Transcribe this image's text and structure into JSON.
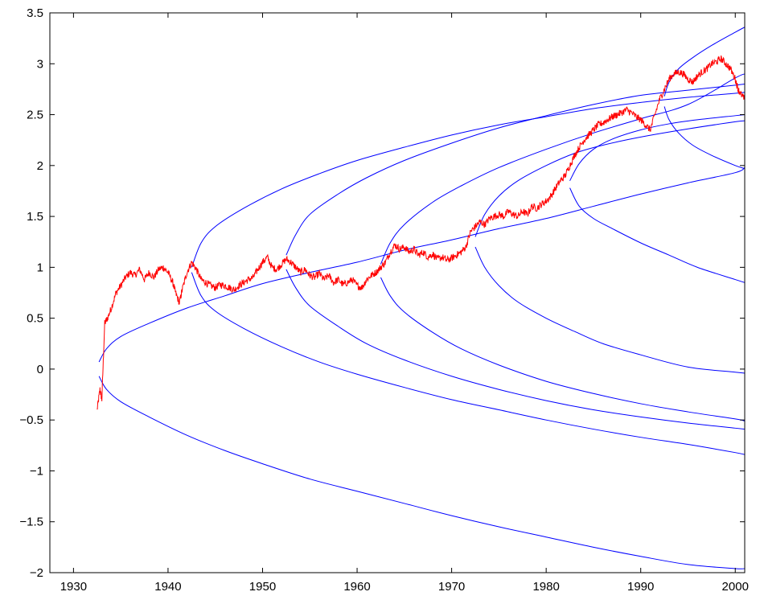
{
  "chart_data": {
    "type": "line",
    "title": "",
    "xlabel": "",
    "ylabel": "",
    "xlim": [
      1927.5,
      2001
    ],
    "ylim": [
      -2,
      3.5
    ],
    "grid": false,
    "x_ticks": [
      1930,
      1940,
      1950,
      1960,
      1970,
      1980,
      1990,
      2000
    ],
    "x_tick_labels": [
      "1930",
      "1940",
      "1950",
      "1960",
      "1970",
      "1980",
      "1990",
      "2000"
    ],
    "y_ticks": [
      -2,
      -1.5,
      -1,
      -0.5,
      0,
      0.5,
      1,
      1.5,
      2,
      2.5,
      3,
      3.5
    ],
    "y_tick_labels": [
      "−2",
      "−1.5",
      "−1",
      "−0.5",
      "0",
      "0.5",
      "1",
      "1.5",
      "2",
      "2.5",
      "3",
      "3.5"
    ],
    "colors": {
      "price": "#ff0000",
      "curves": "#0000ff"
    },
    "series": [
      {
        "color": "#ff0000",
        "x": [
          1932.5,
          1932.8,
          1933.0,
          1933.3,
          1933.6,
          1934.0,
          1934.5,
          1935.0,
          1935.5,
          1936.0,
          1936.5,
          1937.0,
          1937.5,
          1938.0,
          1938.5,
          1939.0,
          1939.5,
          1940.0,
          1940.5,
          1940.8,
          1941.2,
          1941.5,
          1942.0,
          1942.5,
          1943.0,
          1943.5,
          1944.0,
          1944.5,
          1945.0,
          1945.5,
          1946.0,
          1946.5,
          1947.0,
          1947.5,
          1948.0,
          1948.5,
          1949.0,
          1949.5,
          1950.0,
          1950.5,
          1951.0,
          1951.5,
          1952.0,
          1952.5,
          1953.0,
          1953.5,
          1954.0,
          1954.5,
          1955.0,
          1955.5,
          1956.0,
          1956.5,
          1957.0,
          1957.5,
          1958.0,
          1958.5,
          1959.0,
          1959.5,
          1960.0,
          1960.5,
          1961.0,
          1961.5,
          1962.0,
          1962.5,
          1963.0,
          1963.5,
          1964.0,
          1964.5,
          1965.0,
          1965.5,
          1966.0,
          1966.5,
          1967.0,
          1967.5,
          1968.0,
          1968.5,
          1969.0,
          1969.5,
          1970.0,
          1970.5,
          1971.0,
          1971.5,
          1972.0,
          1972.5,
          1973.0,
          1973.5,
          1974.0,
          1974.5,
          1975.0,
          1975.5,
          1976.0,
          1976.5,
          1977.0,
          1977.5,
          1978.0,
          1978.5,
          1979.0,
          1979.5,
          1980.0,
          1980.5,
          1981.0,
          1981.5,
          1982.0,
          1982.5,
          1983.0,
          1983.5,
          1984.0,
          1984.5,
          1985.0,
          1985.5,
          1986.0,
          1986.5,
          1987.0,
          1987.5,
          1988.0,
          1988.5,
          1989.0,
          1989.5,
          1990.0,
          1990.5,
          1991.0,
          1991.5,
          1992.0,
          1992.5,
          1993.0,
          1993.5,
          1994.0,
          1994.5,
          1995.0,
          1995.5,
          1996.0,
          1996.5,
          1997.0,
          1997.5,
          1998.0,
          1998.5,
          1999.0,
          1999.5,
          2000.0,
          2000.3,
          2000.6,
          2001.0
        ],
        "y": [
          -0.4,
          -0.2,
          -0.3,
          0.45,
          0.5,
          0.6,
          0.75,
          0.82,
          0.9,
          0.95,
          0.92,
          0.98,
          0.88,
          0.95,
          0.9,
          0.98,
          1.0,
          0.95,
          0.85,
          0.75,
          0.65,
          0.78,
          0.95,
          1.05,
          0.98,
          0.88,
          0.85,
          0.82,
          0.8,
          0.83,
          0.82,
          0.8,
          0.78,
          0.82,
          0.85,
          0.88,
          0.9,
          0.98,
          1.05,
          1.1,
          1.0,
          0.98,
          1.03,
          1.08,
          1.05,
          1.0,
          0.95,
          0.98,
          0.92,
          0.9,
          0.94,
          0.88,
          0.92,
          0.85,
          0.88,
          0.83,
          0.85,
          0.88,
          0.82,
          0.8,
          0.88,
          0.92,
          0.95,
          1.0,
          1.05,
          1.15,
          1.22,
          1.18,
          1.2,
          1.15,
          1.18,
          1.12,
          1.15,
          1.1,
          1.13,
          1.08,
          1.1,
          1.07,
          1.09,
          1.12,
          1.15,
          1.2,
          1.35,
          1.4,
          1.45,
          1.42,
          1.48,
          1.5,
          1.52,
          1.5,
          1.55,
          1.52,
          1.5,
          1.55,
          1.52,
          1.6,
          1.58,
          1.62,
          1.65,
          1.7,
          1.78,
          1.85,
          1.9,
          2.0,
          2.1,
          2.18,
          2.25,
          2.3,
          2.35,
          2.4,
          2.42,
          2.45,
          2.48,
          2.5,
          2.52,
          2.55,
          2.52,
          2.48,
          2.45,
          2.4,
          2.35,
          2.5,
          2.65,
          2.75,
          2.85,
          2.9,
          2.92,
          2.9,
          2.85,
          2.82,
          2.88,
          2.92,
          2.95,
          3.0,
          3.02,
          3.05,
          3.0,
          2.95,
          2.85,
          2.75,
          2.7,
          2.65
        ],
        "noise": 0.035
      },
      {
        "color": "#0000ff",
        "x": [
          1932.7,
          1933.5,
          1935,
          1938,
          1942,
          1946,
          1950,
          1955,
          1960,
          1965,
          1970,
          1975,
          1980,
          1985,
          1990,
          1995,
          2000,
          2001
        ],
        "y": [
          0.07,
          0.2,
          0.32,
          0.45,
          0.6,
          0.72,
          0.84,
          0.95,
          1.05,
          1.17,
          1.27,
          1.38,
          1.48,
          1.6,
          1.72,
          1.83,
          1.93,
          1.98
        ]
      },
      {
        "color": "#0000ff",
        "x": [
          1932.7,
          1933.5,
          1935,
          1938,
          1942,
          1946,
          1950,
          1955,
          1960,
          1965,
          1970,
          1975,
          1980,
          1985,
          1990,
          1995,
          2000,
          2001
        ],
        "y": [
          -0.07,
          -0.2,
          -0.32,
          -0.47,
          -0.65,
          -0.8,
          -0.93,
          -1.08,
          -1.2,
          -1.32,
          -1.44,
          -1.55,
          -1.65,
          -1.75,
          -1.84,
          -1.92,
          -1.96,
          -1.96
        ]
      },
      {
        "color": "#0000ff",
        "x": [
          1942.5,
          1943.5,
          1945,
          1948,
          1952,
          1956,
          1960,
          1965,
          1970,
          1975,
          1980,
          1985,
          1990,
          1995,
          2000,
          2001
        ],
        "y": [
          1.0,
          1.24,
          1.4,
          1.58,
          1.77,
          1.92,
          2.05,
          2.18,
          2.3,
          2.4,
          2.48,
          2.56,
          2.62,
          2.67,
          2.71,
          2.72
        ]
      },
      {
        "color": "#0000ff",
        "x": [
          1942.5,
          1943.5,
          1945,
          1948,
          1952,
          1956,
          1960,
          1965,
          1970,
          1975,
          1980,
          1985,
          1990,
          1995,
          2000,
          2001
        ],
        "y": [
          0.95,
          0.72,
          0.57,
          0.4,
          0.22,
          0.07,
          -0.05,
          -0.18,
          -0.3,
          -0.4,
          -0.5,
          -0.59,
          -0.67,
          -0.74,
          -0.82,
          -0.84
        ]
      },
      {
        "color": "#0000ff",
        "x": [
          1952.5,
          1953.5,
          1955,
          1958,
          1961,
          1965,
          1970,
          1975,
          1980,
          1985,
          1990,
          1995,
          2000,
          2001
        ],
        "y": [
          1.12,
          1.32,
          1.52,
          1.72,
          1.88,
          2.05,
          2.22,
          2.37,
          2.49,
          2.6,
          2.69,
          2.74,
          2.79,
          2.8
        ]
      },
      {
        "color": "#0000ff",
        "x": [
          1952.5,
          1953.5,
          1955,
          1958,
          1961,
          1965,
          1970,
          1975,
          1980,
          1985,
          1990,
          1995,
          2000,
          2001
        ],
        "y": [
          0.98,
          0.8,
          0.62,
          0.42,
          0.25,
          0.09,
          -0.07,
          -0.2,
          -0.31,
          -0.4,
          -0.47,
          -0.53,
          -0.58,
          -0.59
        ]
      },
      {
        "color": "#0000ff",
        "x": [
          1962.5,
          1963.5,
          1965,
          1968,
          1971,
          1975,
          1980,
          1985,
          1990,
          1995,
          2000,
          2001
        ],
        "y": [
          1.03,
          1.24,
          1.42,
          1.64,
          1.8,
          1.98,
          2.16,
          2.32,
          2.46,
          2.6,
          2.86,
          2.9
        ]
      },
      {
        "color": "#0000ff",
        "x": [
          1962.5,
          1963.5,
          1965,
          1968,
          1971,
          1975,
          1980,
          1985,
          1990,
          1995,
          2000,
          2001
        ],
        "y": [
          0.9,
          0.72,
          0.56,
          0.36,
          0.2,
          0.04,
          -0.12,
          -0.24,
          -0.34,
          -0.42,
          -0.49,
          -0.51
        ]
      },
      {
        "color": "#0000ff",
        "x": [
          1972.5,
          1973.5,
          1975,
          1977,
          1980,
          1983,
          1986,
          1990,
          1995,
          2000,
          2001
        ],
        "y": [
          1.3,
          1.52,
          1.7,
          1.85,
          2.0,
          2.12,
          2.2,
          2.28,
          2.36,
          2.43,
          2.44
        ]
      },
      {
        "color": "#0000ff",
        "x": [
          1972.5,
          1973.5,
          1975,
          1977,
          1980,
          1983,
          1986,
          1990,
          1995,
          2000,
          2001
        ],
        "y": [
          1.2,
          1.0,
          0.82,
          0.66,
          0.5,
          0.37,
          0.25,
          0.14,
          0.02,
          -0.03,
          -0.04
        ]
      },
      {
        "color": "#0000ff",
        "x": [
          1982.5,
          1983.5,
          1985,
          1987,
          1990,
          1993,
          1996,
          2000,
          2001
        ],
        "y": [
          1.85,
          2.02,
          2.16,
          2.26,
          2.35,
          2.41,
          2.45,
          2.49,
          2.5
        ]
      },
      {
        "color": "#0000ff",
        "x": [
          1982.5,
          1983.5,
          1985,
          1987,
          1990,
          1993,
          1996,
          2000,
          2001
        ],
        "y": [
          1.78,
          1.6,
          1.48,
          1.38,
          1.24,
          1.12,
          1.0,
          0.88,
          0.85
        ]
      },
      {
        "color": "#0000ff",
        "x": [
          1992.5,
          1993.0,
          1994.0,
          1995.5,
          1997.5,
          2000.0,
          2001
        ],
        "y": [
          2.68,
          2.82,
          2.95,
          3.06,
          3.18,
          3.31,
          3.36
        ]
      },
      {
        "color": "#0000ff",
        "x": [
          1992.5,
          1993.0,
          1994.0,
          1995.5,
          1997.5,
          2000.0,
          2001
        ],
        "y": [
          2.58,
          2.45,
          2.32,
          2.2,
          2.1,
          2.0,
          1.97
        ]
      }
    ]
  }
}
